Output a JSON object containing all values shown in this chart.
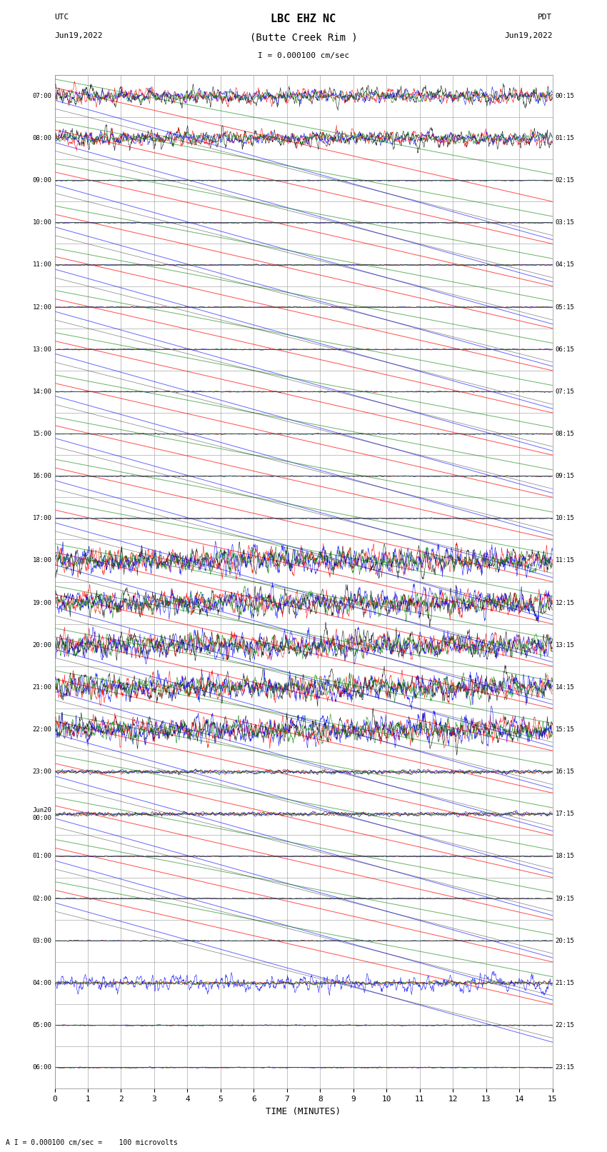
{
  "title_line1": "LBC EHZ NC",
  "title_line2": "(Butte Creek Rim )",
  "scale_label": "I = 0.000100 cm/sec",
  "left_label": "UTC",
  "left_date": "Jun19,2022",
  "right_label": "PDT",
  "right_date": "Jun19,2022",
  "xlabel": "TIME (MINUTES)",
  "bottom_note": "A I = 0.000100 cm/sec =    100 microvolts",
  "utc_times": [
    "07:00",
    "08:00",
    "09:00",
    "10:00",
    "11:00",
    "12:00",
    "13:00",
    "14:00",
    "15:00",
    "16:00",
    "17:00",
    "18:00",
    "19:00",
    "20:00",
    "21:00",
    "22:00",
    "23:00",
    "Jun20\n00:00",
    "01:00",
    "02:00",
    "03:00",
    "04:00",
    "05:00",
    "06:00"
  ],
  "pdt_times": [
    "00:15",
    "01:15",
    "02:15",
    "03:15",
    "04:15",
    "05:15",
    "06:15",
    "07:15",
    "08:15",
    "09:15",
    "10:15",
    "11:15",
    "12:15",
    "13:15",
    "14:15",
    "15:15",
    "16:15",
    "17:15",
    "18:15",
    "19:15",
    "20:15",
    "21:15",
    "22:15",
    "23:15"
  ],
  "n_rows": 24,
  "n_cols": 15,
  "bg_color": "#ffffff",
  "grid_color": "#aaaaaa",
  "trace_colors": [
    "black",
    "red",
    "blue",
    "green"
  ],
  "figsize": [
    8.5,
    16.13
  ],
  "dpi": 100
}
